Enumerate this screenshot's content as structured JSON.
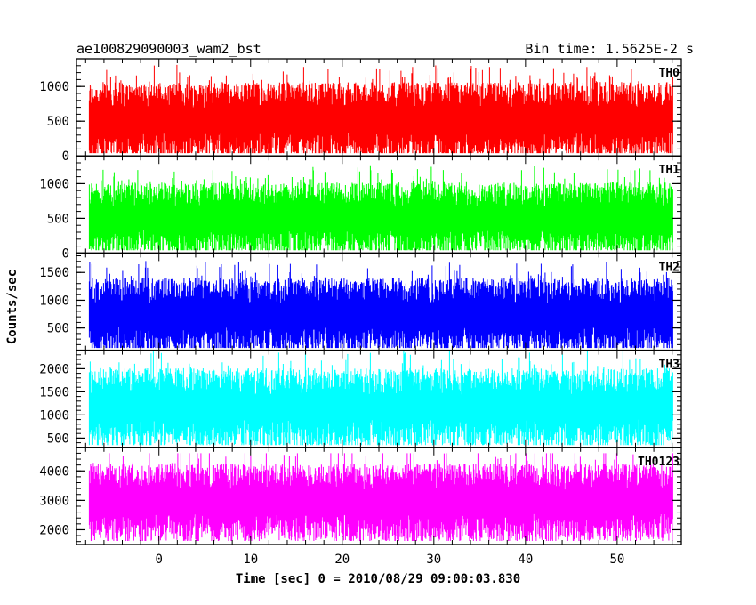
{
  "header": {
    "left": "ae100829090003_wam2_bst",
    "right": "Bin time: 1.5625E-2 s"
  },
  "chart_data": {
    "type": "line",
    "title": "ae100829090003_wam2_bst",
    "xlabel": "Time [sec] 0 = 2010/08/29 09:00:03.830",
    "ylabel": "Counts/sec",
    "xlim": [
      -9,
      57
    ],
    "x_range_data": [
      -7.6,
      56.1
    ],
    "x_ticks": [
      0,
      10,
      20,
      30,
      40,
      50
    ],
    "bin_time_s": 0.015625,
    "grid": false,
    "panels": [
      {
        "name": "TH0",
        "color": "#ff0000",
        "ylim": [
          0,
          1400
        ],
        "y_ticks": [
          0,
          500,
          1000
        ],
        "base_level": 560,
        "spread": 420,
        "min": 40,
        "max": 1400
      },
      {
        "name": "TH1",
        "color": "#00ff00",
        "ylim": [
          0,
          1400
        ],
        "y_ticks": [
          0,
          500,
          1000
        ],
        "base_level": 540,
        "spread": 400,
        "min": 40,
        "max": 1400
      },
      {
        "name": "TH2",
        "color": "#0000ff",
        "ylim": [
          100,
          1850
        ],
        "y_ticks": [
          500,
          1000,
          1500
        ],
        "base_level": 780,
        "spread": 520,
        "min": 140,
        "max": 1850
      },
      {
        "name": "TH3",
        "color": "#00ffff",
        "ylim": [
          300,
          2400
        ],
        "y_ticks": [
          500,
          1000,
          1500,
          2000
        ],
        "base_level": 1230,
        "spread": 650,
        "min": 350,
        "max": 2400
      },
      {
        "name": "TH0123",
        "color": "#ff00ff",
        "ylim": [
          1500,
          4800
        ],
        "y_ticks": [
          2000,
          3000,
          4000
        ],
        "base_level": 3050,
        "spread": 1000,
        "min": 1620,
        "max": 4600
      }
    ]
  }
}
